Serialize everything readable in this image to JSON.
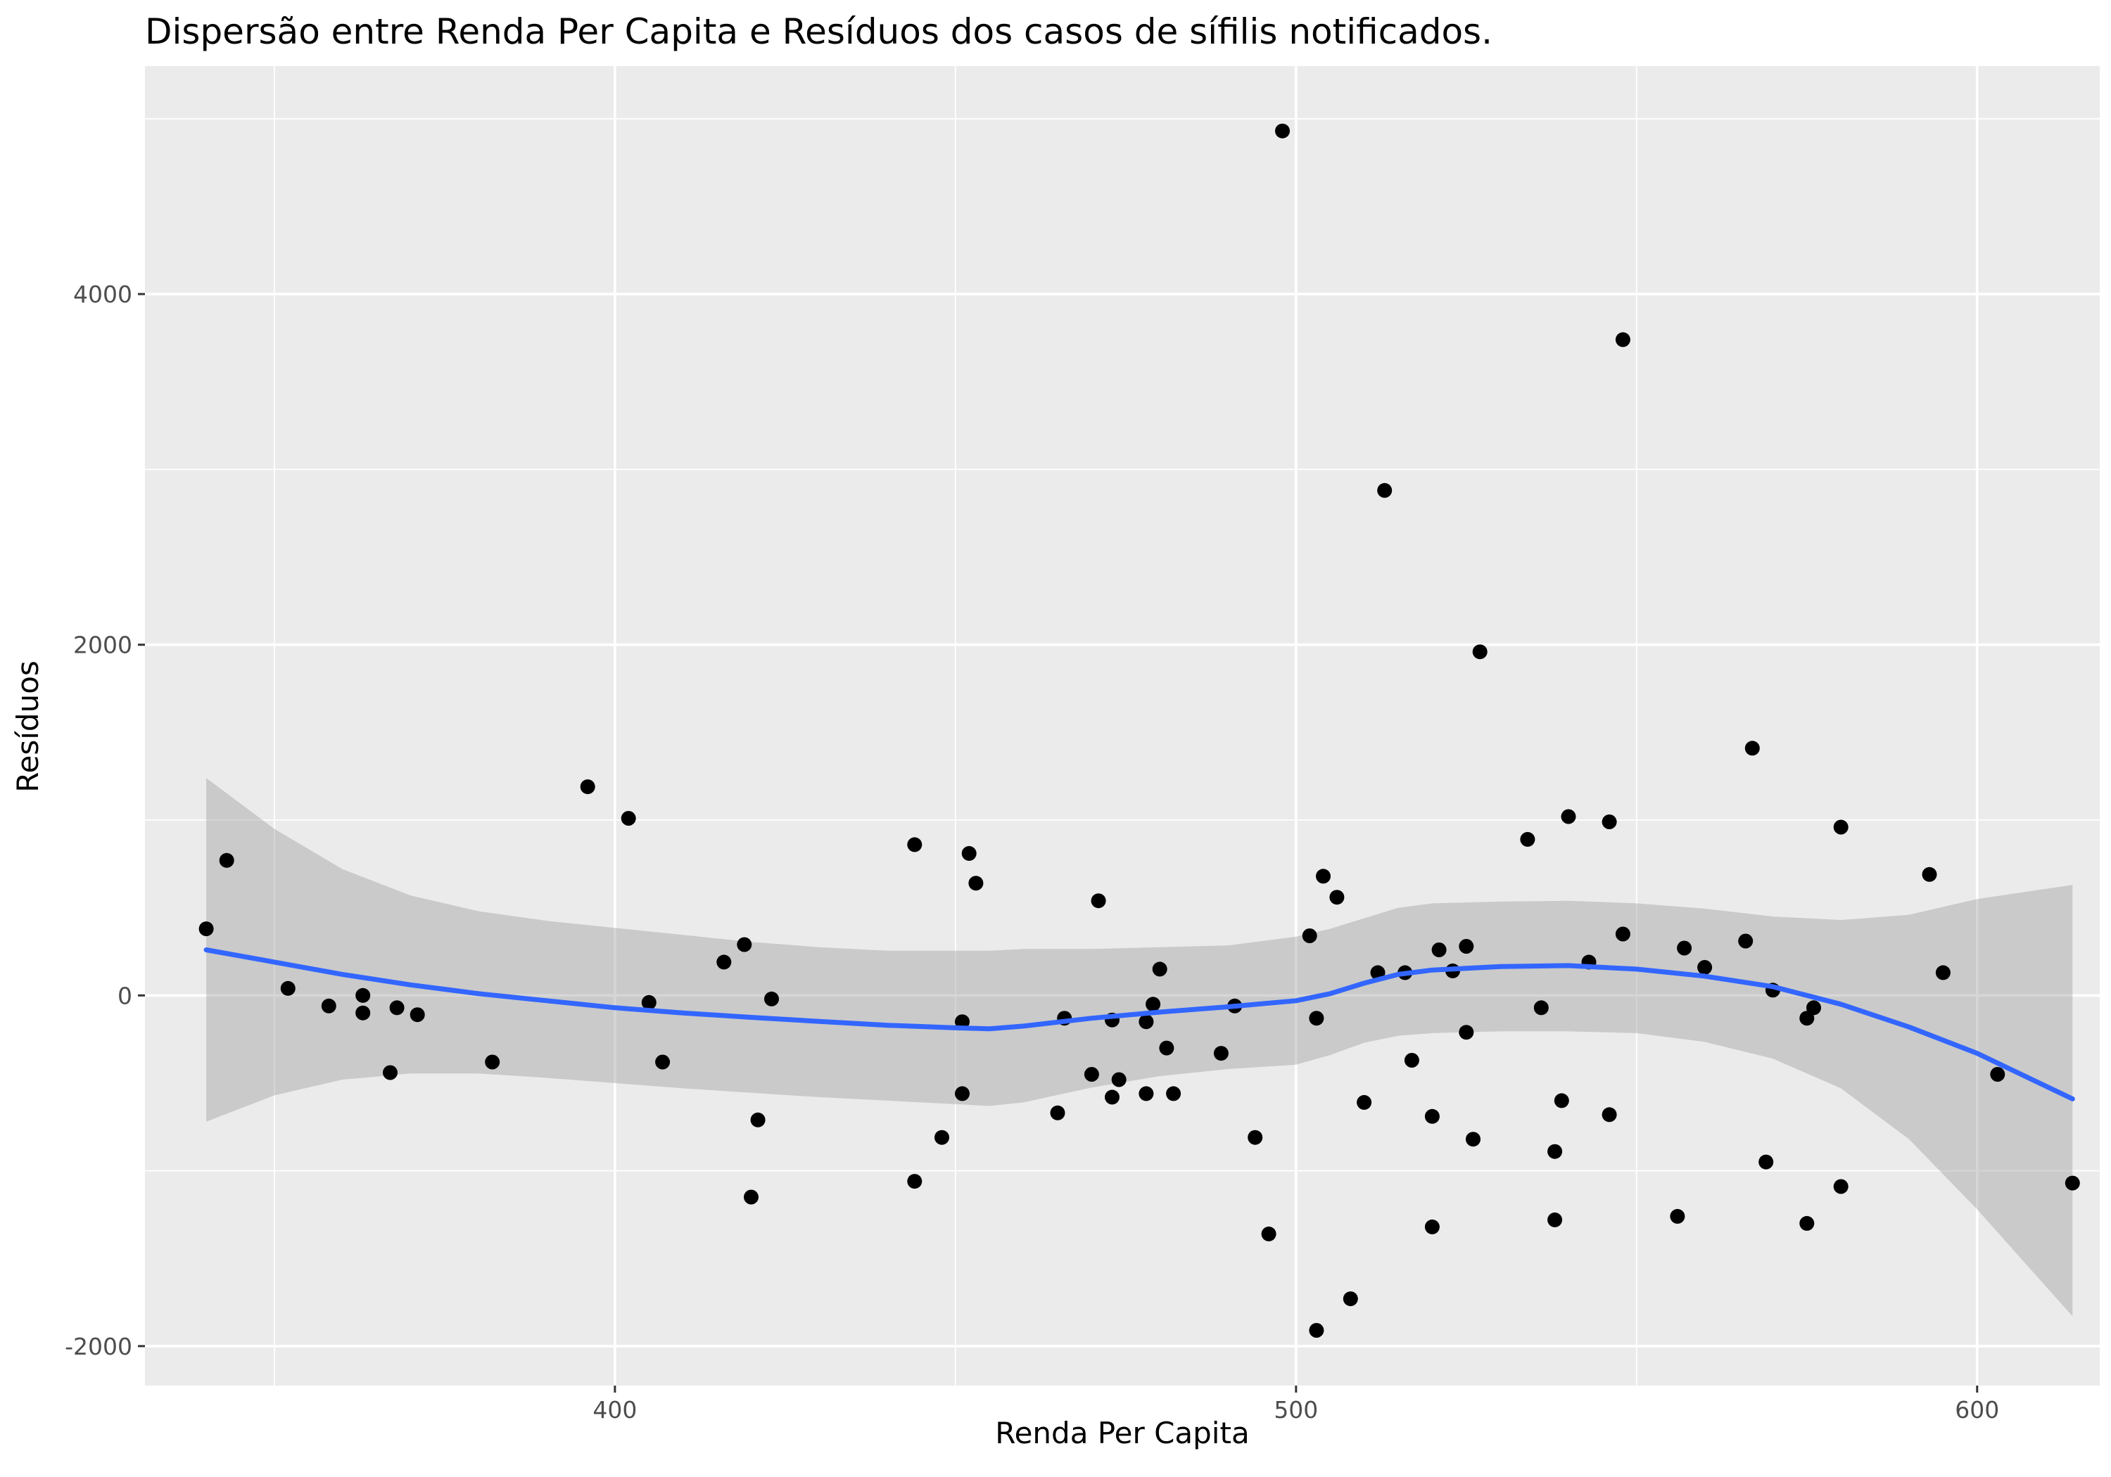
{
  "chart_data": {
    "type": "scatter",
    "title": "Dispersão entre Renda Per Capita e Resíduos dos casos de sífilis notificados.",
    "xlabel": "Renda Per Capita",
    "ylabel": "Resíduos",
    "xlim": [
      331,
      618
    ],
    "ylim": [
      -2225,
      5300
    ],
    "x_ticks": [
      400,
      500,
      600
    ],
    "x_tick_labels": [
      "400",
      "500",
      "600"
    ],
    "y_ticks": [
      -2000,
      0,
      2000,
      4000
    ],
    "y_tick_labels": [
      "-2000",
      "0",
      "2000",
      "4000"
    ],
    "grid": true,
    "legend": "none",
    "colors": {
      "panel": "#ebebeb",
      "grid": "#ffffff",
      "points": "#000000",
      "smooth_line": "#3366ff",
      "confidence_band": "#999999"
    },
    "points": {
      "x": [
        340,
        343,
        352,
        358,
        363,
        363,
        367,
        368,
        371,
        382,
        396,
        402,
        405,
        407,
        416,
        419,
        420,
        421,
        423,
        444,
        444,
        448,
        451,
        451,
        452,
        453,
        465,
        466,
        470,
        471,
        473,
        473,
        474,
        478,
        478,
        479,
        480,
        481,
        482,
        489,
        491,
        494,
        496,
        498,
        502,
        503,
        503,
        504,
        506,
        508,
        510,
        512,
        513,
        516,
        517,
        520,
        520,
        521,
        523,
        525,
        525,
        526,
        527,
        534,
        536,
        538,
        538,
        539,
        540,
        543,
        546,
        546,
        548,
        548,
        556,
        557,
        560,
        566,
        567,
        569,
        570,
        575,
        575,
        576,
        580,
        580,
        593,
        595,
        603,
        614
      ],
      "y": [
        380,
        770,
        40,
        -60,
        0,
        -100,
        -440,
        -70,
        -110,
        -380,
        1190,
        1010,
        -40,
        -380,
        190,
        290,
        -1150,
        -710,
        -20,
        860,
        -1060,
        -810,
        -150,
        -560,
        810,
        640,
        -670,
        -130,
        -450,
        540,
        -580,
        -140,
        -480,
        -560,
        -150,
        -50,
        150,
        -300,
        -560,
        -330,
        -60,
        -810,
        -1360,
        4930,
        340,
        -1910,
        -130,
        680,
        560,
        -1730,
        -610,
        130,
        2880,
        130,
        -370,
        -690,
        -1320,
        260,
        140,
        -210,
        280,
        -820,
        1960,
        890,
        -70,
        -890,
        -1280,
        -600,
        1020,
        190,
        990,
        -680,
        350,
        3740,
        -1260,
        270,
        160,
        310,
        1410,
        -950,
        30,
        -130,
        -1300,
        -70,
        -1090,
        960,
        690,
        130,
        -450,
        -1070
      ]
    },
    "smooth": {
      "x": [
        340,
        350,
        360,
        370,
        380,
        390,
        400,
        410,
        420,
        430,
        440,
        450,
        455,
        460,
        470,
        480,
        490,
        500,
        505,
        510,
        515,
        520,
        530,
        540,
        550,
        560,
        570,
        580,
        590,
        600,
        614
      ],
      "y": [
        260,
        190,
        120,
        60,
        10,
        -30,
        -70,
        -100,
        -125,
        -148,
        -170,
        -185,
        -190,
        -175,
        -130,
        -95,
        -65,
        -30,
        10,
        70,
        120,
        145,
        165,
        170,
        150,
        110,
        50,
        -50,
        -180,
        -330,
        -590
      ],
      "lower": [
        -720,
        -570,
        -480,
        -445,
        -445,
        -470,
        -500,
        -530,
        -555,
        -580,
        -600,
        -620,
        -630,
        -610,
        -525,
        -460,
        -420,
        -395,
        -340,
        -270,
        -230,
        -215,
        -205,
        -205,
        -215,
        -265,
        -360,
        -530,
        -820,
        -1220,
        -1830
      ],
      "upper": [
        1240,
        950,
        720,
        570,
        480,
        425,
        385,
        345,
        305,
        275,
        255,
        255,
        255,
        265,
        265,
        275,
        285,
        335,
        380,
        440,
        500,
        525,
        535,
        540,
        525,
        495,
        450,
        430,
        460,
        550,
        630
      ]
    }
  }
}
